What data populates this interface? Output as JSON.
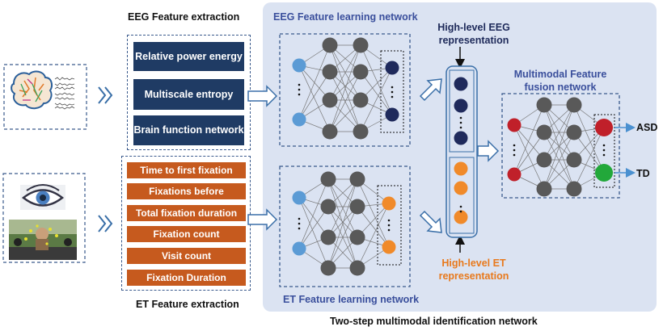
{
  "eeg_extraction": {
    "title": "EEG Feature extraction",
    "features": [
      "Relative power energy",
      "Multiscale entropy",
      "Brain function network"
    ]
  },
  "et_extraction": {
    "title": "ET Feature extraction",
    "features": [
      "Time to first fixation",
      "Fixations before",
      "Total fixation duration",
      "Fixation count",
      "Visit count",
      "Fixation Duration"
    ]
  },
  "network": {
    "eeg_learning_title": "EEG Feature learning network",
    "et_learning_title": "ET Feature learning network",
    "high_level_eeg": "High-level EEG representation",
    "high_level_et": "High-level ET representation",
    "fusion_title": "Multimodal Feature fusion network",
    "caption": "Two-step multimodal identification network"
  },
  "outputs": {
    "asd": "ASD",
    "td": "TD"
  },
  "colors": {
    "panel_bg": "#dbe3f2",
    "eeg_feature_bg": "#1f3b64",
    "et_feature_bg": "#c65a1e",
    "eeg_input_node": "#5b9bd5",
    "eeg_output_node": "#1f2a5c",
    "et_output_node": "#f08a2a",
    "hidden_node": "#595959",
    "fusion_input_node": "#c0202a",
    "asd_node": "#c0202a",
    "td_node": "#22a83a",
    "output_arrow": "#4a90d0"
  },
  "icons": [
    "brain-icon",
    "eeg-signal-icon",
    "eye-icon",
    "child-photo-icon"
  ]
}
